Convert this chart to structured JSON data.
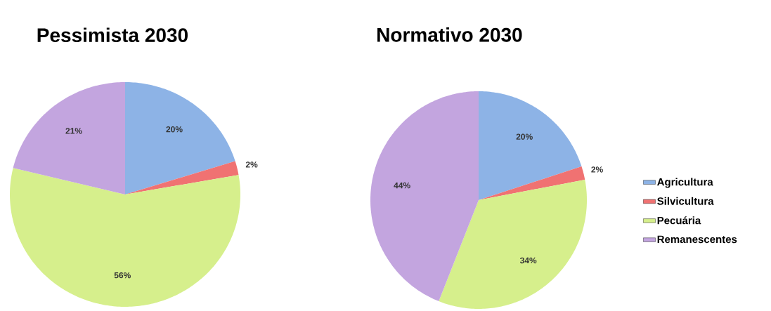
{
  "chart_data": [
    {
      "type": "pie",
      "title": "Pessimista 2030",
      "categories": [
        null,
        null,
        null,
        null
      ],
      "values": [
        20,
        2,
        56,
        21
      ],
      "colors": [
        "#8db3e6",
        "#f07272",
        "#d6ef8c",
        "#c3a5df"
      ],
      "value_labels": [
        "20%",
        "2%",
        "56%",
        "21%"
      ]
    },
    {
      "type": "pie",
      "title": "Normativo 2030",
      "categories": [
        "Agricultura",
        "Silvicultura",
        "Pecuária",
        "Remanescentes"
      ],
      "values": [
        20,
        2,
        34,
        44
      ],
      "colors": [
        "#8db3e6",
        "#f07272",
        "#d6ef8c",
        "#c3a5df"
      ],
      "value_labels": [
        "20%",
        "2%",
        "34%",
        "44%"
      ],
      "legend": "right"
    }
  ]
}
